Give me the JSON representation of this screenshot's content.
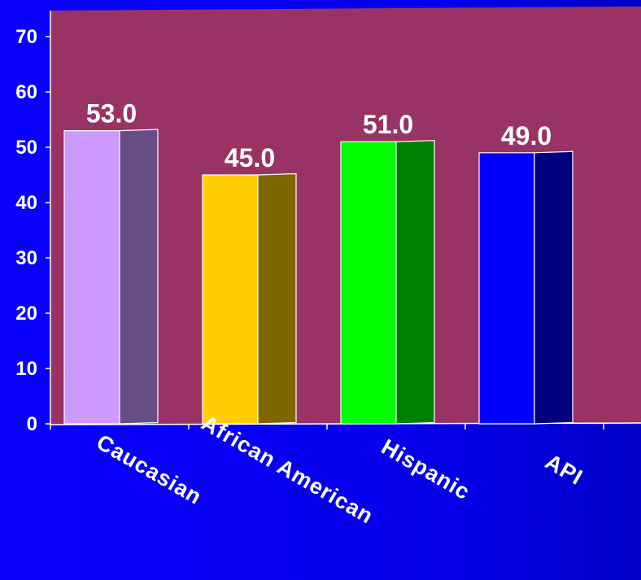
{
  "colors": {
    "plot_background": "#993366",
    "page_background": "#0a00ff",
    "axis": "#ffffff"
  },
  "chart_data": {
    "type": "bar",
    "title": "",
    "xlabel": "",
    "ylabel": "",
    "ylim": [
      0,
      70
    ],
    "y_ticks": [
      0,
      10,
      20,
      30,
      40,
      50,
      60,
      70
    ],
    "grid": false,
    "categories": [
      "Caucasian",
      "African American",
      "Hispanic",
      "API"
    ],
    "values": [
      53.0,
      45.0,
      51.0,
      49.0
    ],
    "data_labels": [
      "53.0",
      "45.0",
      "51.0",
      "49.0"
    ],
    "bar_colors": [
      {
        "front": "#cc99ff",
        "side": "#664f84"
      },
      {
        "front": "#ffcc00",
        "side": "#806600"
      },
      {
        "front": "#00ff00",
        "side": "#008000"
      },
      {
        "front": "#0000ff",
        "side": "#000080"
      }
    ]
  }
}
